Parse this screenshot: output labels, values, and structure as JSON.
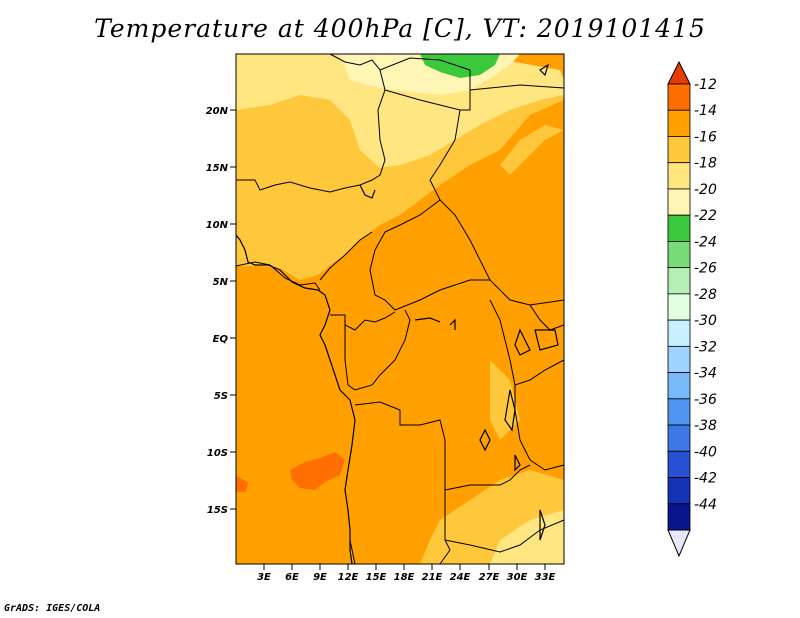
{
  "title": "Temperature at 400hPa [C], VT: 2019101415",
  "credit": "GrADS: IGES/COLA",
  "map": {
    "lat_labels": [
      "20N",
      "15N",
      "10N",
      "5N",
      "EQ",
      "5S",
      "10S",
      "15S"
    ],
    "lon_labels": [
      "3E",
      "6E",
      "9E",
      "12E",
      "15E",
      "18E",
      "21E",
      "24E",
      "27E",
      "30E",
      "33E"
    ],
    "background_color": "#ffa000",
    "field_colors": {
      "band_minus20_minus18": "#ffe680",
      "band_minus18_minus16": "#ffc83c",
      "band_minus16_minus14": "#ffa000",
      "band_minus14_minus12": "#ff6e00",
      "band_minus22_minus20": "#fff5b4",
      "band_minus24_minus22": "#3cc83c"
    }
  },
  "colorbar": {
    "labels": [
      "-12",
      "-14",
      "-16",
      "-18",
      "-20",
      "-22",
      "-24",
      "-26",
      "-28",
      "-30",
      "-32",
      "-34",
      "-36",
      "-38",
      "-40",
      "-42",
      "-44"
    ],
    "colors": [
      "#ff6e00",
      "#ffa000",
      "#ffc83c",
      "#ffe680",
      "#fff5b4",
      "#3cc83c",
      "#78dc78",
      "#b4f0b4",
      "#e1ffe1",
      "#c8f0ff",
      "#a0d2ff",
      "#78b9fa",
      "#5096f0",
      "#3c78e6",
      "#2850d2",
      "#1432b4",
      "#0a148c"
    ],
    "top_arrow_color": "#e63c00",
    "bottom_arrow_color": "#e6e6ff"
  }
}
